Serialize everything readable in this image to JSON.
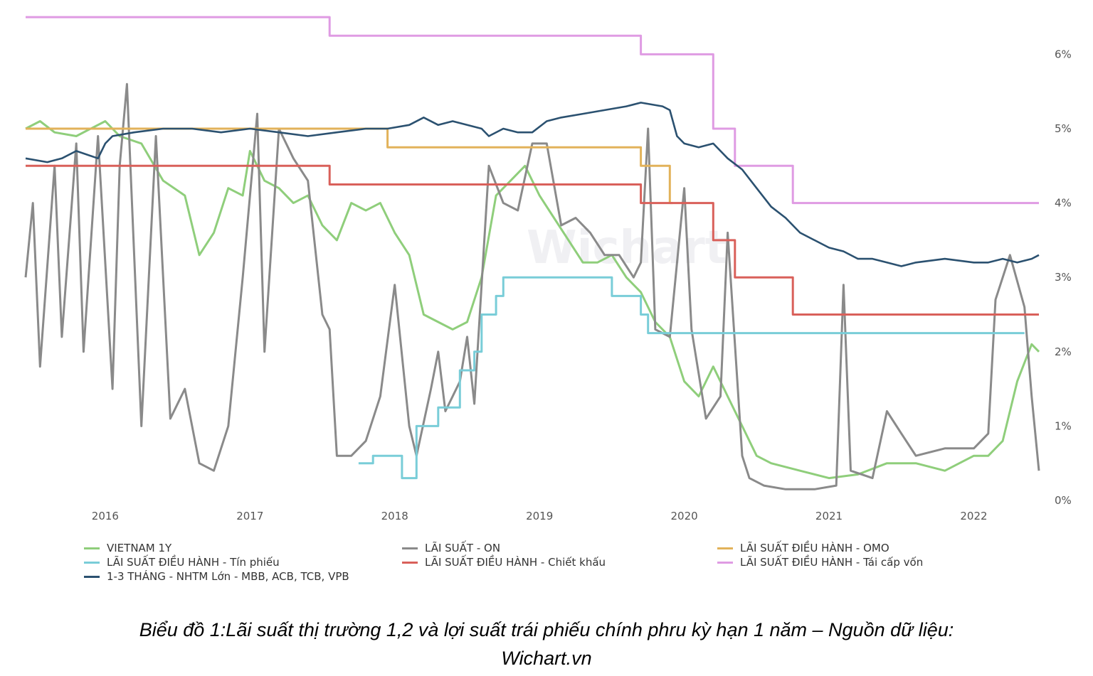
{
  "chart_data": {
    "type": "line",
    "watermark": "Wichart",
    "x_ticks": [
      "2016",
      "2017",
      "2018",
      "2019",
      "2020",
      "2021",
      "2022"
    ],
    "y_ticks": [
      "0%",
      "1%",
      "2%",
      "3%",
      "4%",
      "5%",
      "6%"
    ],
    "ylim": [
      0,
      6.8
    ],
    "xlim": [
      2015.45,
      2022.45
    ],
    "y_axis_side": "right",
    "legend_position": "bottom",
    "series": [
      {
        "name": "VIETNAM 1Y",
        "color": "#8fce7b",
        "x": [
          2015.45,
          2015.55,
          2015.65,
          2015.8,
          2015.9,
          2016.0,
          2016.1,
          2016.25,
          2016.4,
          2016.55,
          2016.65,
          2016.75,
          2016.85,
          2016.95,
          2017.0,
          2017.1,
          2017.2,
          2017.3,
          2017.4,
          2017.5,
          2017.6,
          2017.7,
          2017.8,
          2017.9,
          2018.0,
          2018.1,
          2018.2,
          2018.3,
          2018.4,
          2018.5,
          2018.6,
          2018.7,
          2018.8,
          2018.9,
          2019.0,
          2019.1,
          2019.2,
          2019.3,
          2019.4,
          2019.5,
          2019.6,
          2019.7,
          2019.8,
          2019.9,
          2020.0,
          2020.1,
          2020.2,
          2020.3,
          2020.4,
          2020.5,
          2020.6,
          2020.8,
          2021.0,
          2021.2,
          2021.4,
          2021.6,
          2021.8,
          2022.0,
          2022.1,
          2022.2,
          2022.3,
          2022.4,
          2022.45
        ],
        "y": [
          5.0,
          5.1,
          4.95,
          4.9,
          5.0,
          5.1,
          4.9,
          4.8,
          4.3,
          4.1,
          3.3,
          3.6,
          4.2,
          4.1,
          4.7,
          4.3,
          4.2,
          4.0,
          4.1,
          3.7,
          3.5,
          4.0,
          3.9,
          4.0,
          3.6,
          3.3,
          2.5,
          2.4,
          2.3,
          2.4,
          3.0,
          4.1,
          4.3,
          4.5,
          4.1,
          3.8,
          3.5,
          3.2,
          3.2,
          3.3,
          3.0,
          2.8,
          2.4,
          2.2,
          1.6,
          1.4,
          1.8,
          1.4,
          1.0,
          0.6,
          0.5,
          0.4,
          0.3,
          0.35,
          0.5,
          0.5,
          0.4,
          0.6,
          0.6,
          0.8,
          1.6,
          2.1,
          2.0
        ]
      },
      {
        "name": "LÃI SUẤT - ON",
        "color": "#8a8a8a",
        "x": [
          2015.45,
          2015.5,
          2015.55,
          2015.65,
          2015.7,
          2015.8,
          2015.85,
          2015.95,
          2016.05,
          2016.1,
          2016.15,
          2016.25,
          2016.35,
          2016.45,
          2016.55,
          2016.65,
          2016.75,
          2016.85,
          2016.95,
          2017.05,
          2017.1,
          2017.2,
          2017.3,
          2017.4,
          2017.5,
          2017.55,
          2017.6,
          2017.7,
          2017.8,
          2017.9,
          2018.0,
          2018.1,
          2018.15,
          2018.25,
          2018.3,
          2018.35,
          2018.45,
          2018.5,
          2018.55,
          2018.65,
          2018.75,
          2018.85,
          2018.95,
          2019.05,
          2019.15,
          2019.25,
          2019.35,
          2019.45,
          2019.55,
          2019.65,
          2019.7,
          2019.75,
          2019.8,
          2019.9,
          2020.0,
          2020.05,
          2020.15,
          2020.25,
          2020.3,
          2020.4,
          2020.45,
          2020.55,
          2020.7,
          2020.9,
          2021.05,
          2021.1,
          2021.15,
          2021.3,
          2021.4,
          2021.5,
          2021.6,
          2021.8,
          2022.0,
          2022.1,
          2022.15,
          2022.25,
          2022.35,
          2022.4,
          2022.45
        ],
        "y": [
          3.0,
          4.0,
          1.8,
          4.5,
          2.2,
          4.8,
          2.0,
          4.9,
          1.5,
          4.5,
          5.6,
          1.0,
          4.9,
          1.1,
          1.5,
          0.5,
          0.4,
          1.0,
          3.0,
          5.2,
          2.0,
          5.0,
          4.6,
          4.3,
          2.5,
          2.3,
          0.6,
          0.6,
          0.8,
          1.4,
          2.9,
          1.0,
          0.6,
          1.5,
          2.0,
          1.2,
          1.6,
          2.2,
          1.3,
          4.5,
          4.0,
          3.9,
          4.8,
          4.8,
          3.7,
          3.8,
          3.6,
          3.3,
          3.3,
          3.0,
          3.2,
          5.0,
          2.3,
          2.2,
          4.2,
          2.3,
          1.1,
          1.4,
          3.6,
          0.6,
          0.3,
          0.2,
          0.15,
          0.15,
          0.2,
          2.9,
          0.4,
          0.3,
          1.2,
          0.9,
          0.6,
          0.7,
          0.7,
          0.9,
          2.7,
          3.3,
          2.6,
          1.4,
          0.4
        ]
      },
      {
        "name": "LÃI SUẤT ĐIỀU HÀNH - OMO",
        "color": "#e2b25a",
        "x": [
          2015.45,
          2017.95,
          2017.95,
          2019.7,
          2019.7,
          2019.9,
          2019.9,
          2019.92
        ],
        "y": [
          5.0,
          5.0,
          4.75,
          4.75,
          4.5,
          4.5,
          4.0,
          4.0
        ]
      },
      {
        "name": "LÃI SUẤT ĐIỀU HÀNH - Tín phiếu",
        "color": "#79cdd8",
        "x": [
          2017.75,
          2017.85,
          2017.85,
          2018.05,
          2018.05,
          2018.15,
          2018.15,
          2018.3,
          2018.3,
          2018.45,
          2018.45,
          2018.55,
          2018.55,
          2018.6,
          2018.6,
          2018.7,
          2018.7,
          2018.75,
          2018.75,
          2019.5,
          2019.5,
          2019.7,
          2019.7,
          2019.75,
          2019.75,
          2022.35
        ],
        "y": [
          0.5,
          0.5,
          0.6,
          0.6,
          0.3,
          0.3,
          1.0,
          1.0,
          1.25,
          1.25,
          1.75,
          1.75,
          2.0,
          2.0,
          2.5,
          2.5,
          2.75,
          2.75,
          3.0,
          3.0,
          2.75,
          2.75,
          2.5,
          2.5,
          2.25,
          2.25
        ]
      },
      {
        "name": "LÃI SUẤT ĐIỀU HÀNH - Chiết khấu",
        "color": "#d9605a",
        "x": [
          2015.45,
          2017.55,
          2017.55,
          2019.7,
          2019.7,
          2020.2,
          2020.2,
          2020.35,
          2020.35,
          2020.75,
          2020.75,
          2022.45
        ],
        "y": [
          4.5,
          4.5,
          4.25,
          4.25,
          4.0,
          4.0,
          3.5,
          3.5,
          3.0,
          3.0,
          2.5,
          2.5
        ]
      },
      {
        "name": "LÃI SUẤT ĐIỀU HÀNH - Tái cấp vốn",
        "color": "#df9be3",
        "x": [
          2015.45,
          2017.55,
          2017.55,
          2019.7,
          2019.7,
          2020.2,
          2020.2,
          2020.35,
          2020.35,
          2020.75,
          2020.75,
          2022.45
        ],
        "y": [
          6.5,
          6.5,
          6.25,
          6.25,
          6.0,
          6.0,
          5.0,
          5.0,
          4.5,
          4.5,
          4.0,
          4.0
        ]
      },
      {
        "name": "1-3 THÁNG - NHTM Lớn - MBB, ACB, TCB, VPB",
        "color": "#2b5170",
        "x": [
          2015.45,
          2015.6,
          2015.7,
          2015.8,
          2015.95,
          2016.0,
          2016.05,
          2016.2,
          2016.4,
          2016.6,
          2016.8,
          2017.0,
          2017.2,
          2017.4,
          2017.6,
          2017.8,
          2017.95,
          2018.1,
          2018.2,
          2018.3,
          2018.4,
          2018.5,
          2018.6,
          2018.65,
          2018.75,
          2018.85,
          2018.95,
          2019.05,
          2019.15,
          2019.3,
          2019.45,
          2019.6,
          2019.7,
          2019.85,
          2019.9,
          2019.95,
          2020.0,
          2020.1,
          2020.2,
          2020.3,
          2020.4,
          2020.5,
          2020.6,
          2020.7,
          2020.8,
          2020.9,
          2021.0,
          2021.1,
          2021.2,
          2021.3,
          2021.4,
          2021.5,
          2021.6,
          2021.8,
          2022.0,
          2022.1,
          2022.2,
          2022.3,
          2022.4,
          2022.45
        ],
        "y": [
          4.6,
          4.55,
          4.6,
          4.7,
          4.6,
          4.8,
          4.9,
          4.95,
          5.0,
          5.0,
          4.95,
          5.0,
          4.95,
          4.9,
          4.95,
          5.0,
          5.0,
          5.05,
          5.15,
          5.05,
          5.1,
          5.05,
          5.0,
          4.9,
          5.0,
          4.95,
          4.95,
          5.1,
          5.15,
          5.2,
          5.25,
          5.3,
          5.35,
          5.3,
          5.25,
          4.9,
          4.8,
          4.75,
          4.8,
          4.6,
          4.45,
          4.2,
          3.95,
          3.8,
          3.6,
          3.5,
          3.4,
          3.35,
          3.25,
          3.25,
          3.2,
          3.15,
          3.2,
          3.25,
          3.2,
          3.2,
          3.25,
          3.2,
          3.25,
          3.3
        ]
      }
    ]
  },
  "legend": [
    {
      "label": "VIETNAM 1Y",
      "color": "#8fce7b"
    },
    {
      "label": "LÃI SUẤT - ON",
      "color": "#8a8a8a"
    },
    {
      "label": "LÃI SUẤT ĐIỀU HÀNH - OMO",
      "color": "#e2b25a"
    },
    {
      "label": "LÃI SUẤT ĐIỀU HÀNH - Tín phiếu",
      "color": "#79cdd8"
    },
    {
      "label": "LÃI SUẤT ĐIỀU HÀNH - Chiết khấu",
      "color": "#d9605a"
    },
    {
      "label": "LÃI SUẤT ĐIỀU HÀNH - Tái cấp vốn",
      "color": "#df9be3"
    },
    {
      "label": "1-3 THÁNG - NHTM Lớn - MBB, ACB, TCB, VPB",
      "color": "#2b5170"
    }
  ],
  "caption": {
    "line1": "Biểu đồ 1:Lãi suất thị trường 1,2 và lợi suất trái phiếu chính phru kỳ hạn 1 năm – Nguồn dữ liệu:",
    "line2": "Wichart.vn"
  }
}
